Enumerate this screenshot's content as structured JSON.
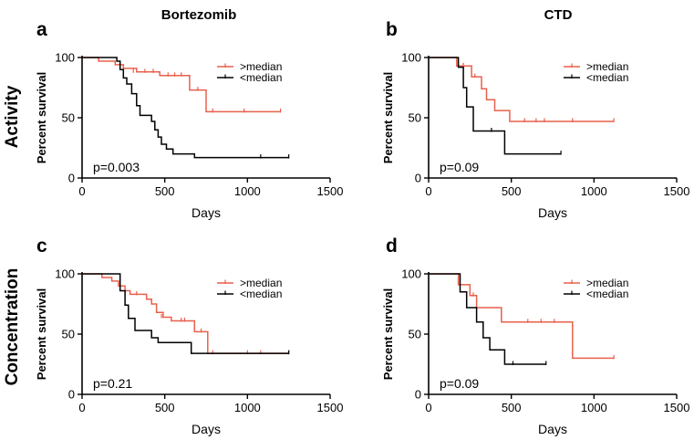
{
  "figure": {
    "column_titles": [
      "Bortezomib",
      "CTD"
    ],
    "row_titles": [
      "Activity",
      "Concentration"
    ]
  },
  "colors": {
    "above": "#e8604c",
    "below": "#000000",
    "axis": "#000000"
  },
  "chart_data": [
    {
      "type": "line",
      "panel": "a",
      "title": "",
      "xlabel": "Days",
      "ylabel": "Percent survival",
      "xlim": [
        0,
        1500
      ],
      "ylim": [
        0,
        100
      ],
      "xticks": [
        0,
        500,
        1000,
        1500
      ],
      "yticks": [
        0,
        50,
        100
      ],
      "legend": ">median / <median, top-right",
      "pvalue": "p=0.003",
      "series": [
        {
          "name": ">median",
          "color": "#e8604c",
          "steps": [
            [
              0,
              100
            ],
            [
              100,
              100
            ],
            [
              100,
              97
            ],
            [
              200,
              97
            ],
            [
              200,
              94
            ],
            [
              250,
              94
            ],
            [
              250,
              91
            ],
            [
              330,
              91
            ],
            [
              330,
              88
            ],
            [
              470,
              88
            ],
            [
              470,
              85
            ],
            [
              650,
              85
            ],
            [
              650,
              73
            ],
            [
              750,
              73
            ],
            [
              750,
              55
            ],
            [
              1200,
              55
            ]
          ],
          "censor": [
            [
              310,
              88
            ],
            [
              380,
              88
            ],
            [
              430,
              88
            ],
            [
              520,
              85
            ],
            [
              560,
              85
            ],
            [
              600,
              85
            ],
            [
              700,
              73
            ],
            [
              790,
              55
            ],
            [
              980,
              55
            ],
            [
              1200,
              55
            ]
          ]
        },
        {
          "name": "<median",
          "color": "#000000",
          "steps": [
            [
              0,
              100
            ],
            [
              210,
              100
            ],
            [
              210,
              97
            ],
            [
              230,
              97
            ],
            [
              230,
              90
            ],
            [
              250,
              90
            ],
            [
              250,
              83
            ],
            [
              270,
              83
            ],
            [
              270,
              78
            ],
            [
              300,
              78
            ],
            [
              300,
              70
            ],
            [
              330,
              70
            ],
            [
              330,
              60
            ],
            [
              350,
              60
            ],
            [
              350,
              52
            ],
            [
              420,
              52
            ],
            [
              420,
              47
            ],
            [
              440,
              47
            ],
            [
              440,
              40
            ],
            [
              460,
              40
            ],
            [
              460,
              34
            ],
            [
              480,
              34
            ],
            [
              480,
              28
            ],
            [
              510,
              28
            ],
            [
              510,
              24
            ],
            [
              550,
              24
            ],
            [
              550,
              20
            ],
            [
              680,
              20
            ],
            [
              680,
              17
            ],
            [
              1250,
              17
            ]
          ],
          "censor": [
            [
              1080,
              17
            ],
            [
              1250,
              17
            ]
          ]
        }
      ]
    },
    {
      "type": "line",
      "panel": "b",
      "title": "",
      "xlabel": "Days",
      "ylabel": "Percent survival",
      "xlim": [
        0,
        1500
      ],
      "ylim": [
        0,
        100
      ],
      "xticks": [
        0,
        500,
        1000,
        1500
      ],
      "yticks": [
        0,
        50,
        100
      ],
      "legend": ">median / <median, top-right",
      "pvalue": "p=0.09",
      "series": [
        {
          "name": ">median",
          "color": "#e8604c",
          "steps": [
            [
              0,
              100
            ],
            [
              170,
              100
            ],
            [
              170,
              93
            ],
            [
              260,
              93
            ],
            [
              260,
              84
            ],
            [
              320,
              84
            ],
            [
              320,
              74
            ],
            [
              350,
              74
            ],
            [
              350,
              65
            ],
            [
              400,
              65
            ],
            [
              400,
              56
            ],
            [
              490,
              56
            ],
            [
              490,
              47
            ],
            [
              1120,
              47
            ]
          ],
          "censor": [
            [
              210,
              93
            ],
            [
              280,
              84
            ],
            [
              580,
              47
            ],
            [
              650,
              47
            ],
            [
              700,
              47
            ],
            [
              870,
              47
            ],
            [
              1120,
              47
            ]
          ]
        },
        {
          "name": "<median",
          "color": "#000000",
          "steps": [
            [
              0,
              100
            ],
            [
              180,
              100
            ],
            [
              180,
              92
            ],
            [
              210,
              92
            ],
            [
              210,
              75
            ],
            [
              230,
              75
            ],
            [
              230,
              59
            ],
            [
              270,
              59
            ],
            [
              270,
              39
            ],
            [
              460,
              39
            ],
            [
              460,
              20
            ],
            [
              800,
              20
            ]
          ],
          "censor": [
            [
              380,
              39
            ],
            [
              800,
              20
            ]
          ]
        }
      ]
    },
    {
      "type": "line",
      "panel": "c",
      "title": "",
      "xlabel": "Days",
      "ylabel": "Percent survival",
      "xlim": [
        0,
        1500
      ],
      "ylim": [
        0,
        100
      ],
      "xticks": [
        0,
        500,
        1000,
        1500
      ],
      "yticks": [
        0,
        50,
        100
      ],
      "legend": ">median / <median, top-right",
      "pvalue": "p=0.21",
      "series": [
        {
          "name": ">median",
          "color": "#e8604c",
          "steps": [
            [
              0,
              100
            ],
            [
              120,
              100
            ],
            [
              120,
              97
            ],
            [
              180,
              97
            ],
            [
              180,
              94
            ],
            [
              220,
              94
            ],
            [
              220,
              90
            ],
            [
              260,
              90
            ],
            [
              260,
              86
            ],
            [
              290,
              86
            ],
            [
              290,
              83
            ],
            [
              390,
              83
            ],
            [
              390,
              79
            ],
            [
              420,
              79
            ],
            [
              420,
              75
            ],
            [
              450,
              75
            ],
            [
              450,
              68
            ],
            [
              490,
              68
            ],
            [
              490,
              64
            ],
            [
              540,
              64
            ],
            [
              540,
              61
            ],
            [
              680,
              61
            ],
            [
              680,
              52
            ],
            [
              760,
              52
            ],
            [
              760,
              34
            ],
            [
              1250,
              34
            ]
          ],
          "censor": [
            [
              330,
              83
            ],
            [
              480,
              64
            ],
            [
              600,
              61
            ],
            [
              620,
              61
            ],
            [
              720,
              52
            ],
            [
              790,
              34
            ],
            [
              1000,
              34
            ],
            [
              1080,
              34
            ],
            [
              1250,
              34
            ]
          ]
        },
        {
          "name": "<median",
          "color": "#000000",
          "steps": [
            [
              0,
              100
            ],
            [
              230,
              100
            ],
            [
              230,
              86
            ],
            [
              260,
              86
            ],
            [
              260,
              74
            ],
            [
              280,
              74
            ],
            [
              280,
              63
            ],
            [
              320,
              63
            ],
            [
              320,
              53
            ],
            [
              420,
              53
            ],
            [
              420,
              47
            ],
            [
              460,
              47
            ],
            [
              460,
              43
            ],
            [
              660,
              43
            ],
            [
              660,
              34
            ],
            [
              1250,
              34
            ]
          ],
          "censor": [
            [
              1250,
              34
            ]
          ]
        }
      ]
    },
    {
      "type": "line",
      "panel": "d",
      "title": "",
      "xlabel": "Days",
      "ylabel": "Percent survival",
      "xlim": [
        0,
        1500
      ],
      "ylim": [
        0,
        100
      ],
      "xticks": [
        0,
        500,
        1000,
        1500
      ],
      "yticks": [
        0,
        50,
        100
      ],
      "legend": ">median / <median, top-right",
      "pvalue": "p=0.09",
      "series": [
        {
          "name": ">median",
          "color": "#e8604c",
          "steps": [
            [
              0,
              100
            ],
            [
              180,
              100
            ],
            [
              180,
              91
            ],
            [
              250,
              91
            ],
            [
              250,
              82
            ],
            [
              290,
              82
            ],
            [
              290,
              72
            ],
            [
              440,
              72
            ],
            [
              440,
              60
            ],
            [
              870,
              60
            ],
            [
              870,
              30
            ],
            [
              1120,
              30
            ]
          ],
          "censor": [
            [
              270,
              82
            ],
            [
              600,
              60
            ],
            [
              680,
              60
            ],
            [
              760,
              60
            ],
            [
              1120,
              30
            ]
          ]
        },
        {
          "name": "<median",
          "color": "#000000",
          "steps": [
            [
              0,
              100
            ],
            [
              190,
              100
            ],
            [
              190,
              85
            ],
            [
              230,
              85
            ],
            [
              230,
              72
            ],
            [
              290,
              72
            ],
            [
              290,
              60
            ],
            [
              330,
              60
            ],
            [
              330,
              47
            ],
            [
              370,
              47
            ],
            [
              370,
              37
            ],
            [
              460,
              37
            ],
            [
              460,
              25
            ],
            [
              710,
              25
            ]
          ],
          "censor": [
            [
              510,
              25
            ],
            [
              710,
              25
            ]
          ]
        }
      ]
    }
  ]
}
